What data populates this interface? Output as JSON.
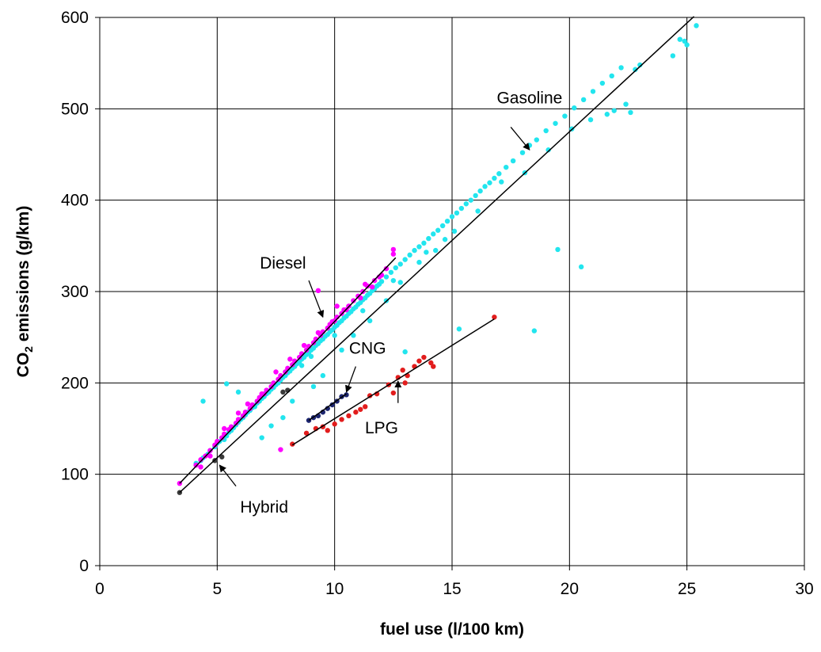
{
  "chart_data": {
    "type": "scatter",
    "xlabel": "fuel use (l/100 km)",
    "ylabel_prefix": "CO",
    "ylabel_sub": "2",
    "ylabel_suffix": " emissions (g/km)",
    "xlim": [
      0,
      30
    ],
    "ylim": [
      0,
      600
    ],
    "x_ticks": [
      0,
      5,
      10,
      15,
      20,
      25,
      30
    ],
    "y_ticks": [
      0,
      100,
      200,
      300,
      400,
      500,
      600
    ],
    "grid": true,
    "legend": "none",
    "series": [
      {
        "name": "Gasoline",
        "color": "#22e5ee",
        "trend": [
          [
            3.4,
            80
          ],
          [
            25.3,
            601
          ]
        ],
        "points": [
          [
            4.1,
            112
          ],
          [
            4.3,
            115
          ],
          [
            4.4,
            118
          ],
          [
            4.6,
            122
          ],
          [
            4.7,
            126
          ],
          [
            4.9,
            130
          ],
          [
            5.0,
            134
          ],
          [
            5.1,
            136
          ],
          [
            5.3,
            138
          ],
          [
            5.4,
            142
          ],
          [
            5.5,
            146
          ],
          [
            5.6,
            148
          ],
          [
            5.7,
            151
          ],
          [
            5.8,
            154
          ],
          [
            5.9,
            157
          ],
          [
            6.0,
            160
          ],
          [
            6.1,
            162
          ],
          [
            6.2,
            165
          ],
          [
            6.3,
            168
          ],
          [
            6.4,
            170
          ],
          [
            6.5,
            173
          ],
          [
            6.6,
            175
          ],
          [
            6.7,
            178
          ],
          [
            6.8,
            180
          ],
          [
            6.9,
            183
          ],
          [
            7.0,
            185
          ],
          [
            7.1,
            188
          ],
          [
            7.2,
            190
          ],
          [
            7.3,
            193
          ],
          [
            7.4,
            195
          ],
          [
            7.5,
            198
          ],
          [
            7.6,
            200
          ],
          [
            7.7,
            203
          ],
          [
            7.8,
            206
          ],
          [
            7.9,
            208
          ],
          [
            8.0,
            211
          ],
          [
            8.1,
            213
          ],
          [
            8.2,
            216
          ],
          [
            8.3,
            218
          ],
          [
            8.4,
            221
          ],
          [
            8.5,
            223
          ],
          [
            8.6,
            226
          ],
          [
            8.7,
            228
          ],
          [
            8.8,
            231
          ],
          [
            8.9,
            233
          ],
          [
            9.0,
            236
          ],
          [
            9.1,
            238
          ],
          [
            9.2,
            241
          ],
          [
            9.3,
            243
          ],
          [
            9.4,
            246
          ],
          [
            9.5,
            248
          ],
          [
            9.6,
            251
          ],
          [
            9.7,
            253
          ],
          [
            9.8,
            256
          ],
          [
            9.9,
            258
          ],
          [
            10.0,
            261
          ],
          [
            10.1,
            263
          ],
          [
            10.2,
            266
          ],
          [
            10.3,
            268
          ],
          [
            10.4,
            271
          ],
          [
            10.5,
            273
          ],
          [
            10.6,
            276
          ],
          [
            10.7,
            278
          ],
          [
            10.8,
            281
          ],
          [
            10.9,
            283
          ],
          [
            11.0,
            286
          ],
          [
            11.1,
            288
          ],
          [
            11.2,
            291
          ],
          [
            11.3,
            293
          ],
          [
            11.4,
            296
          ],
          [
            11.5,
            298
          ],
          [
            11.6,
            301
          ],
          [
            11.7,
            303
          ],
          [
            11.8,
            306
          ],
          [
            11.9,
            308
          ],
          [
            12.0,
            311
          ],
          [
            12.2,
            316
          ],
          [
            12.4,
            321
          ],
          [
            12.6,
            326
          ],
          [
            12.8,
            330
          ],
          [
            13.0,
            335
          ],
          [
            13.2,
            340
          ],
          [
            13.4,
            345
          ],
          [
            13.6,
            349
          ],
          [
            13.8,
            353
          ],
          [
            14.0,
            358
          ],
          [
            14.2,
            363
          ],
          [
            14.4,
            367
          ],
          [
            14.6,
            372
          ],
          [
            14.8,
            377
          ],
          [
            15.0,
            382
          ],
          [
            15.2,
            386
          ],
          [
            15.4,
            391
          ],
          [
            15.6,
            396
          ],
          [
            15.8,
            400
          ],
          [
            16.0,
            405
          ],
          [
            16.2,
            410
          ],
          [
            16.4,
            415
          ],
          [
            16.6,
            419
          ],
          [
            16.8,
            424
          ],
          [
            17.0,
            429
          ],
          [
            17.3,
            436
          ],
          [
            17.6,
            443
          ],
          [
            18.0,
            452
          ],
          [
            18.3,
            460
          ],
          [
            18.6,
            466
          ],
          [
            19.0,
            476
          ],
          [
            19.4,
            484
          ],
          [
            19.8,
            492
          ],
          [
            20.2,
            501
          ],
          [
            20.6,
            510
          ],
          [
            21.0,
            519
          ],
          [
            21.4,
            528
          ],
          [
            21.8,
            536
          ],
          [
            22.2,
            545
          ],
          [
            22.6,
            496
          ],
          [
            22.4,
            505
          ],
          [
            21.9,
            498
          ],
          [
            21.6,
            494
          ],
          [
            22.8,
            543
          ],
          [
            24.4,
            558
          ],
          [
            24.7,
            576
          ],
          [
            24.9,
            574
          ],
          [
            25.0,
            570
          ],
          [
            25.4,
            591
          ],
          [
            19.5,
            346
          ],
          [
            20.5,
            327
          ],
          [
            18.5,
            257
          ],
          [
            15.3,
            259
          ],
          [
            13.0,
            234
          ],
          [
            4.4,
            180
          ],
          [
            5.4,
            199
          ],
          [
            5.9,
            190
          ],
          [
            6.6,
            174
          ],
          [
            6.9,
            140
          ],
          [
            7.3,
            153
          ],
          [
            7.8,
            162
          ],
          [
            8.2,
            180
          ],
          [
            9.1,
            196
          ],
          [
            9.5,
            208
          ],
          [
            10.3,
            236
          ],
          [
            10.8,
            252
          ],
          [
            11.5,
            268
          ],
          [
            12.2,
            290
          ],
          [
            12.8,
            310
          ],
          [
            13.6,
            332
          ],
          [
            14.3,
            345
          ],
          [
            15.1,
            366
          ],
          [
            16.1,
            388
          ],
          [
            17.1,
            420
          ],
          [
            18.1,
            430
          ],
          [
            19.1,
            455
          ],
          [
            20.1,
            478
          ],
          [
            20.9,
            488
          ],
          [
            23.0,
            548
          ],
          [
            14.7,
            357
          ],
          [
            13.9,
            343
          ],
          [
            12.5,
            312
          ],
          [
            11.2,
            279
          ],
          [
            10.0,
            252
          ],
          [
            9.0,
            229
          ],
          [
            8.6,
            219
          ]
        ]
      },
      {
        "name": "Diesel",
        "color": "#ff00ff",
        "trend": [
          [
            3.4,
            90
          ],
          [
            12.6,
            337
          ]
        ],
        "points": [
          [
            3.4,
            90
          ],
          [
            4.1,
            110
          ],
          [
            4.3,
            116
          ],
          [
            4.5,
            120
          ],
          [
            4.7,
            126
          ],
          [
            4.9,
            132
          ],
          [
            5.0,
            136
          ],
          [
            5.2,
            140
          ],
          [
            5.3,
            144
          ],
          [
            5.5,
            149
          ],
          [
            5.6,
            152
          ],
          [
            5.8,
            156
          ],
          [
            5.9,
            160
          ],
          [
            6.1,
            164
          ],
          [
            6.2,
            168
          ],
          [
            6.4,
            172
          ],
          [
            6.5,
            176
          ],
          [
            6.7,
            180
          ],
          [
            6.8,
            184
          ],
          [
            7.0,
            188
          ],
          [
            7.1,
            192
          ],
          [
            7.3,
            196
          ],
          [
            7.4,
            200
          ],
          [
            7.6,
            204
          ],
          [
            7.7,
            208
          ],
          [
            7.9,
            212
          ],
          [
            8.0,
            216
          ],
          [
            8.2,
            220
          ],
          [
            8.3,
            224
          ],
          [
            8.5,
            228
          ],
          [
            8.6,
            232
          ],
          [
            8.8,
            236
          ],
          [
            8.9,
            240
          ],
          [
            9.1,
            244
          ],
          [
            9.2,
            248
          ],
          [
            9.4,
            252
          ],
          [
            9.5,
            256
          ],
          [
            9.7,
            260
          ],
          [
            9.8,
            264
          ],
          [
            10.0,
            268
          ],
          [
            10.1,
            272
          ],
          [
            10.3,
            276
          ],
          [
            10.4,
            280
          ],
          [
            10.6,
            284
          ],
          [
            10.8,
            290
          ],
          [
            11.0,
            295
          ],
          [
            11.2,
            300
          ],
          [
            11.4,
            306
          ],
          [
            11.7,
            312
          ],
          [
            11.9,
            316
          ],
          [
            12.2,
            325
          ],
          [
            12.5,
            341
          ],
          [
            12.5,
            346
          ],
          [
            9.3,
            301
          ],
          [
            10.1,
            284
          ],
          [
            10.6,
            284
          ],
          [
            11.3,
            308
          ],
          [
            7.7,
            127
          ],
          [
            4.3,
            108
          ],
          [
            4.7,
            120
          ],
          [
            5.3,
            150
          ],
          [
            5.9,
            167
          ],
          [
            6.3,
            177
          ],
          [
            6.9,
            188
          ],
          [
            7.5,
            212
          ],
          [
            8.1,
            226
          ],
          [
            8.7,
            241
          ],
          [
            9.3,
            255
          ],
          [
            9.9,
            267
          ],
          [
            10.5,
            280
          ],
          [
            11.1,
            293
          ],
          [
            11.6,
            305
          ],
          [
            12.0,
            318
          ]
        ]
      },
      {
        "name": "CNG",
        "color": "#1c2570",
        "trend": [
          [
            8.9,
            159
          ],
          [
            10.5,
            188
          ]
        ],
        "points": [
          [
            8.9,
            159
          ],
          [
            9.1,
            162
          ],
          [
            9.3,
            164
          ],
          [
            9.5,
            168
          ],
          [
            9.7,
            172
          ],
          [
            9.9,
            176
          ],
          [
            10.1,
            180
          ],
          [
            10.3,
            185
          ],
          [
            10.5,
            187
          ]
        ]
      },
      {
        "name": "LPG",
        "color": "#e21d1d",
        "trend": [
          [
            8.2,
            132
          ],
          [
            16.8,
            270
          ]
        ],
        "points": [
          [
            8.2,
            133
          ],
          [
            8.8,
            145
          ],
          [
            9.2,
            150
          ],
          [
            9.5,
            152
          ],
          [
            9.7,
            148
          ],
          [
            10.0,
            155
          ],
          [
            10.3,
            160
          ],
          [
            10.6,
            164
          ],
          [
            10.9,
            168
          ],
          [
            11.1,
            171
          ],
          [
            11.3,
            174
          ],
          [
            11.5,
            186
          ],
          [
            11.8,
            188
          ],
          [
            12.3,
            198
          ],
          [
            12.5,
            189
          ],
          [
            12.7,
            206
          ],
          [
            12.9,
            214
          ],
          [
            13.1,
            208
          ],
          [
            13.4,
            218
          ],
          [
            13.6,
            224
          ],
          [
            13.8,
            228
          ],
          [
            14.1,
            222
          ],
          [
            14.2,
            218
          ],
          [
            13.0,
            200
          ],
          [
            16.8,
            272
          ]
        ]
      },
      {
        "name": "Hybrid",
        "color": "#3a3a3a",
        "trend": [],
        "points": [
          [
            3.4,
            80
          ],
          [
            4.9,
            115
          ],
          [
            5.2,
            119
          ],
          [
            7.8,
            190
          ],
          [
            8.0,
            192
          ]
        ]
      }
    ],
    "annotations": [
      {
        "text": "Gasoline",
        "label_at": [
          18.3,
          506
        ],
        "arrow_from": [
          17.5,
          480
        ],
        "arrow_to": [
          18.3,
          455
        ]
      },
      {
        "text": "Diesel",
        "label_at": [
          7.8,
          325
        ],
        "arrow_from": [
          8.9,
          312
        ],
        "arrow_to": [
          9.5,
          272
        ]
      },
      {
        "text": "CNG",
        "label_at": [
          11.4,
          232
        ],
        "arrow_from": [
          10.9,
          218
        ],
        "arrow_to": [
          10.5,
          190
        ]
      },
      {
        "text": "LPG",
        "label_at": [
          12.0,
          145
        ],
        "arrow_from": [
          12.7,
          178
        ],
        "arrow_to": [
          12.7,
          202
        ]
      },
      {
        "text": "Hybrid",
        "label_at": [
          7.0,
          58
        ],
        "arrow_from": [
          5.8,
          87
        ],
        "arrow_to": [
          5.1,
          110
        ]
      }
    ]
  }
}
